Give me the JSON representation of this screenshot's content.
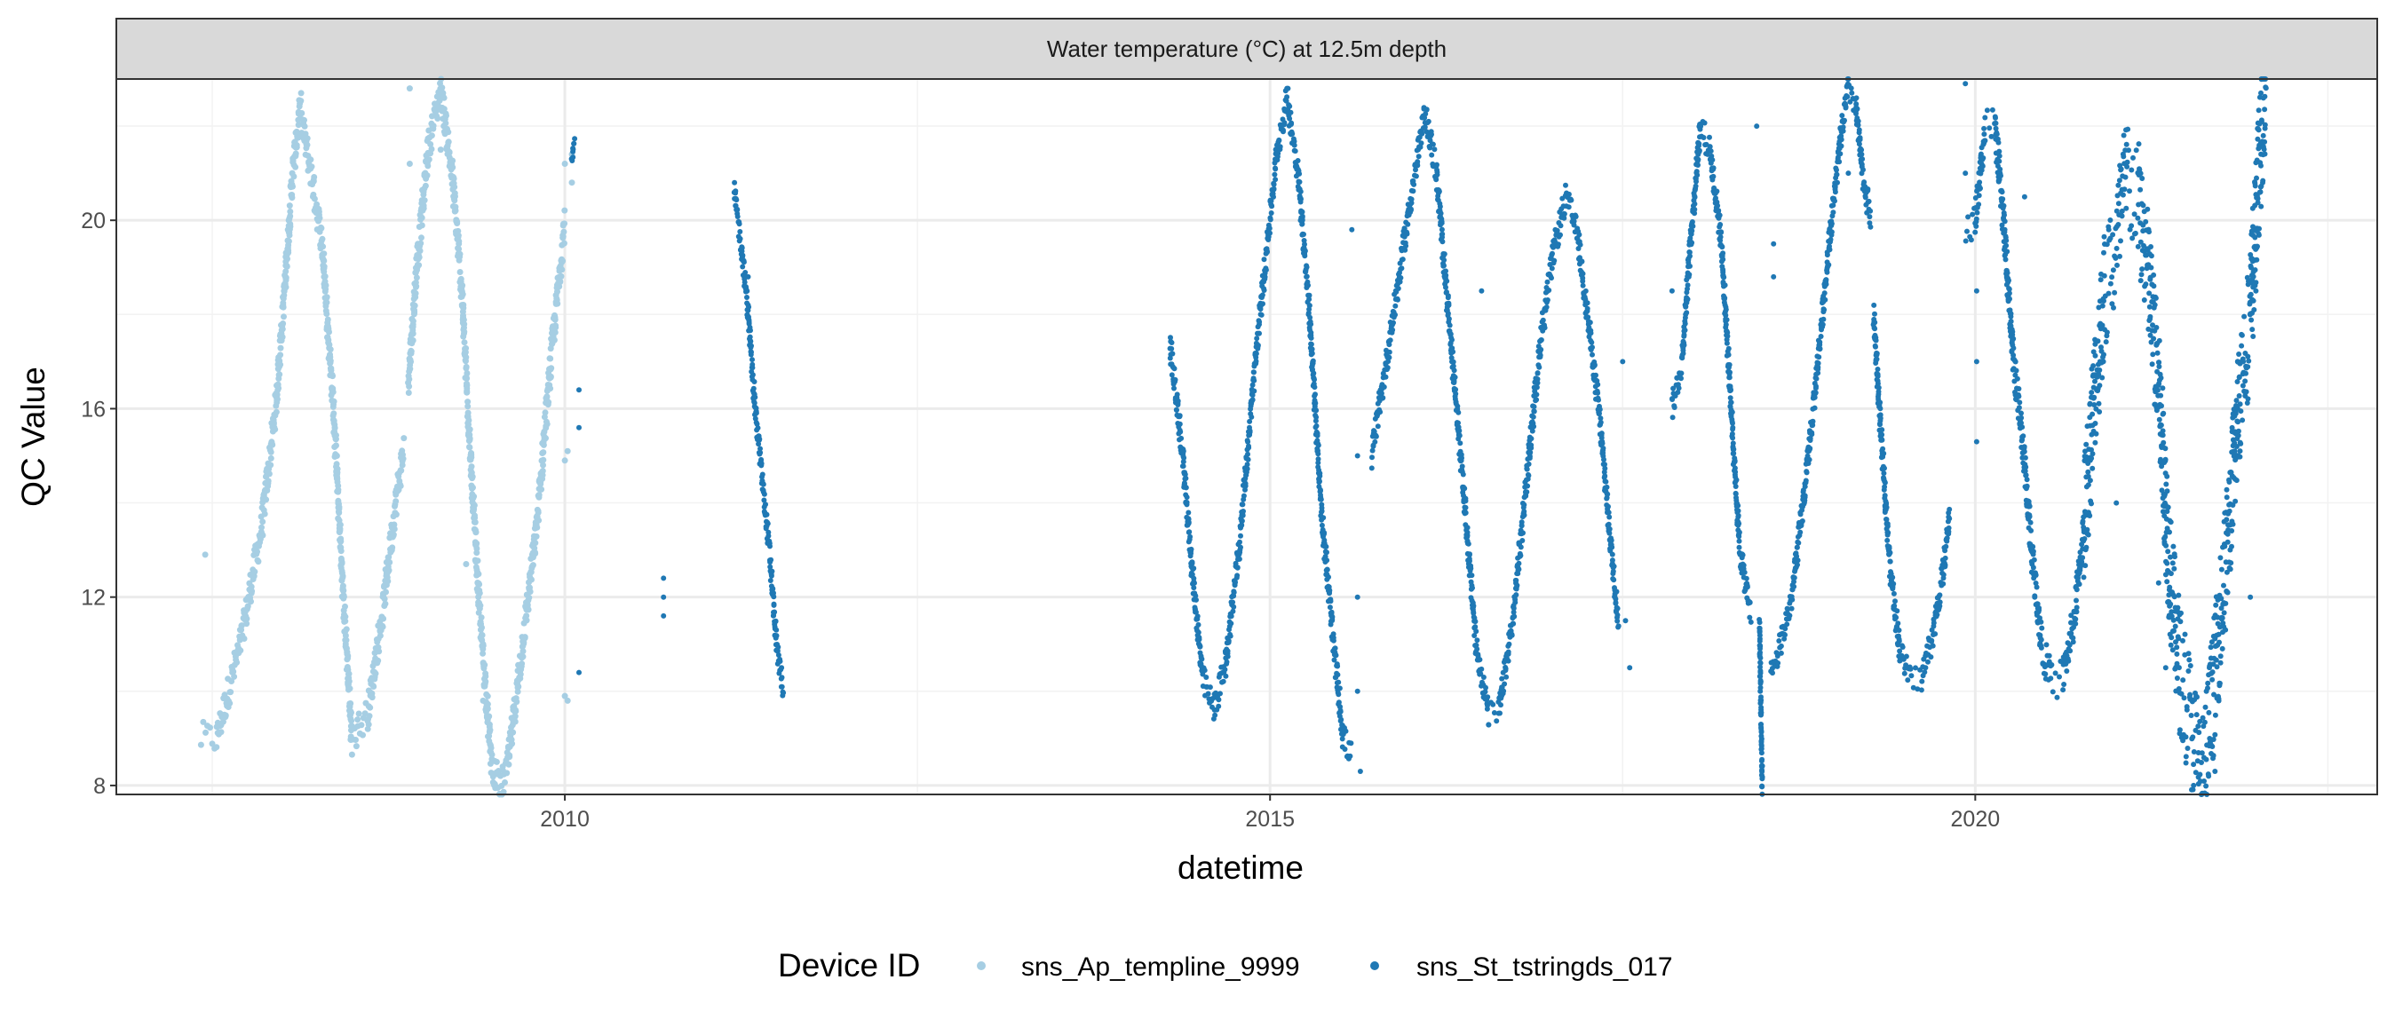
{
  "chart_data": {
    "type": "scatter",
    "facet_title": "Water temperature (°C) at 12.5m depth",
    "xlabel": "datetime",
    "ylabel": "QC Value",
    "xlim": [
      2006.82,
      2022.85
    ],
    "ylim": [
      7.81,
      23.0
    ],
    "x_ticks": [
      2010,
      2015,
      2020
    ],
    "x_tick_labels": [
      "2010",
      "2015",
      "2020"
    ],
    "x_minor": [
      2007.5,
      2012.5,
      2017.5,
      2022.5
    ],
    "y_ticks": [
      8,
      12,
      16,
      20
    ],
    "y_tick_labels": [
      "8",
      "12",
      "16",
      "20"
    ],
    "y_minor": [
      10,
      14,
      18,
      22
    ],
    "grid": true,
    "legend": {
      "title": "Device ID",
      "position": "bottom"
    },
    "series": [
      {
        "name": "sns_Ap_templine_9999",
        "color": "#a6cee3",
        "segments": [
          {
            "noise": 0.35,
            "points": [
              [
                2007.42,
                9.0
              ],
              [
                2007.53,
                9.0
              ],
              [
                2007.7,
                11
              ],
              [
                2007.85,
                13.5
              ],
              [
                2007.95,
                16
              ],
              [
                2008.0,
                18
              ],
              [
                2008.07,
                21
              ],
              [
                2008.12,
                22.3
              ],
              [
                2008.2,
                21
              ],
              [
                2008.28,
                19.5
              ],
              [
                2008.36,
                16
              ],
              [
                2008.42,
                12.5
              ],
              [
                2008.49,
                9.0
              ],
              [
                2008.6,
                9.5
              ],
              [
                2008.7,
                11.5
              ],
              [
                2008.8,
                14
              ],
              [
                2008.86,
                15.2
              ]
            ]
          },
          {
            "noise": 0.35,
            "points": [
              [
                2008.89,
                16.5
              ],
              [
                2008.95,
                19
              ],
              [
                2009.03,
                21.5
              ],
              [
                2009.12,
                22.8
              ],
              [
                2009.2,
                21
              ],
              [
                2009.27,
                18.5
              ],
              [
                2009.33,
                15
              ],
              [
                2009.4,
                11.5
              ],
              [
                2009.48,
                8.5
              ],
              [
                2009.54,
                7.9
              ],
              [
                2009.6,
                8.5
              ],
              [
                2009.7,
                11
              ],
              [
                2009.8,
                13.5
              ],
              [
                2009.9,
                17
              ],
              [
                2010.0,
                20
              ]
            ]
          }
        ],
        "outliers": [
          [
            2007.45,
            12.9
          ],
          [
            2008.13,
            22.7
          ],
          [
            2009.12,
            21.5
          ],
          [
            2008.9,
            22.8
          ],
          [
            2008.9,
            21.2
          ],
          [
            2009.42,
            11
          ],
          [
            2009.42,
            9.8
          ],
          [
            2010.0,
            14.9
          ],
          [
            2010.02,
            15.1
          ],
          [
            2010.0,
            9.9
          ],
          [
            2010.02,
            9.8
          ],
          [
            2010.05,
            20.8
          ],
          [
            2010.05,
            21.4
          ],
          [
            2008.46,
            10.7
          ],
          [
            2008.53,
            9.4
          ],
          [
            2009.3,
            12.7
          ],
          [
            2010.0,
            21.2
          ]
        ]
      },
      {
        "name": "sns_St_tstringds_017",
        "color": "#1f78b4",
        "segments": [
          {
            "noise": 0.1,
            "points": [
              [
                2010.05,
                21.3
              ],
              [
                2010.07,
                21.7
              ]
            ]
          },
          {
            "noise": 0.25,
            "points": [
              [
                2011.2,
                20.6
              ],
              [
                2011.25,
                19.5
              ],
              [
                2011.3,
                18
              ],
              [
                2011.35,
                16
              ],
              [
                2011.4,
                14.5
              ],
              [
                2011.45,
                13
              ],
              [
                2011.5,
                11
              ],
              [
                2011.55,
                10
              ]
            ]
          },
          {
            "noise": 0.3,
            "points": [
              [
                2014.29,
                17.4
              ],
              [
                2014.38,
                15
              ],
              [
                2014.45,
                12.5
              ],
              [
                2014.52,
                10.3
              ],
              [
                2014.6,
                9.6
              ],
              [
                2014.68,
                10.5
              ],
              [
                2014.78,
                13
              ],
              [
                2014.88,
                16.5
              ],
              [
                2014.98,
                19.5
              ],
              [
                2015.05,
                21.5
              ],
              [
                2015.12,
                22.6
              ],
              [
                2015.2,
                21
              ],
              [
                2015.28,
                18
              ],
              [
                2015.36,
                14
              ],
              [
                2015.45,
                11
              ],
              [
                2015.52,
                9.0
              ],
              [
                2015.58,
                8.6
              ]
            ]
          },
          {
            "noise": 0.3,
            "points": [
              [
                2015.72,
                15
              ],
              [
                2015.8,
                16.5
              ],
              [
                2015.9,
                18.5
              ],
              [
                2016.0,
                20.5
              ],
              [
                2016.1,
                22.3
              ],
              [
                2016.18,
                21
              ],
              [
                2016.28,
                17.5
              ],
              [
                2016.38,
                14
              ],
              [
                2016.46,
                11
              ],
              [
                2016.55,
                9.5
              ],
              [
                2016.62,
                9.5
              ],
              [
                2016.72,
                11.5
              ],
              [
                2016.82,
                14.5
              ],
              [
                2016.92,
                17.5
              ],
              [
                2017.02,
                19.5
              ],
              [
                2017.1,
                20.5
              ],
              [
                2017.18,
                19.7
              ],
              [
                2017.25,
                18
              ],
              [
                2017.33,
                16
              ],
              [
                2017.42,
                13
              ],
              [
                2017.47,
                11.5
              ]
            ]
          },
          {
            "noise": 0.3,
            "points": [
              [
                2017.85,
                16
              ],
              [
                2017.92,
                17
              ],
              [
                2017.98,
                19.5
              ],
              [
                2018.05,
                22
              ],
              [
                2018.12,
                21.5
              ],
              [
                2018.2,
                19.5
              ],
              [
                2018.27,
                16
              ],
              [
                2018.33,
                13
              ],
              [
                2018.41,
                11.6
              ]
            ]
          },
          {
            "noise": 0.2,
            "points": [
              [
                2018.47,
                11.5
              ],
              [
                2018.49,
                7.8
              ]
            ]
          },
          {
            "noise": 0.3,
            "points": [
              [
                2018.55,
                10.3
              ],
              [
                2018.62,
                11
              ],
              [
                2018.7,
                12
              ],
              [
                2018.8,
                14.5
              ],
              [
                2018.9,
                17.5
              ],
              [
                2018.98,
                20
              ],
              [
                2019.05,
                21.8
              ],
              [
                2019.1,
                22.8
              ],
              [
                2019.15,
                22.5
              ],
              [
                2019.2,
                21
              ],
              [
                2019.26,
                20
              ]
            ]
          },
          {
            "noise": 0.3,
            "points": [
              [
                2019.28,
                18
              ],
              [
                2019.33,
                15.5
              ],
              [
                2019.4,
                12.5
              ],
              [
                2019.47,
                10.8
              ],
              [
                2019.55,
                10.2
              ],
              [
                2019.62,
                10.3
              ],
              [
                2019.7,
                11.2
              ],
              [
                2019.77,
                12.5
              ],
              [
                2019.82,
                13.8
              ]
            ]
          },
          {
            "noise": 0.4,
            "points": [
              [
                2019.93,
                19.8
              ],
              [
                2020.0,
                20
              ],
              [
                2020.07,
                22
              ],
              [
                2020.14,
                22
              ],
              [
                2020.2,
                20
              ],
              [
                2020.27,
                17
              ],
              [
                2020.33,
                15.5
              ],
              [
                2020.4,
                13
              ],
              [
                2020.47,
                11
              ],
              [
                2020.54,
                10.2
              ],
              [
                2020.62,
                10.3
              ],
              [
                2020.7,
                11.5
              ],
              [
                2020.77,
                13.5
              ]
            ]
          },
          {
            "noise": 1.4,
            "points": [
              [
                2020.77,
                13.5
              ],
              [
                2020.85,
                16.5
              ],
              [
                2020.92,
                18.5
              ],
              [
                2021.0,
                19.5
              ],
              [
                2021.08,
                21
              ],
              [
                2021.15,
                20.5
              ],
              [
                2021.22,
                19
              ],
              [
                2021.3,
                16.5
              ],
              [
                2021.38,
                12.5
              ],
              [
                2021.45,
                10.5
              ],
              [
                2021.52,
                9.5
              ],
              [
                2021.6,
                8.2
              ],
              [
                2021.65,
                9
              ],
              [
                2021.72,
                11
              ],
              [
                2021.8,
                13.5
              ],
              [
                2021.88,
                16.5
              ],
              [
                2021.95,
                18
              ],
              [
                2022.0,
                20.5
              ],
              [
                2022.06,
                23
              ]
            ]
          }
        ],
        "outliers": [
          [
            2010.1,
            16.4
          ],
          [
            2010.1,
            15.6
          ],
          [
            2010.1,
            10.4
          ],
          [
            2010.7,
            12.4
          ],
          [
            2010.7,
            12.0
          ],
          [
            2010.7,
            11.6
          ],
          [
            2011.3,
            18.8
          ],
          [
            2011.3,
            18.2
          ],
          [
            2015.62,
            15
          ],
          [
            2015.62,
            12
          ],
          [
            2015.62,
            10
          ],
          [
            2015.64,
            8.3
          ],
          [
            2015.58,
            19.8
          ],
          [
            2016.05,
            21.5
          ],
          [
            2016.5,
            18.5
          ],
          [
            2017.5,
            17
          ],
          [
            2017.52,
            11.5
          ],
          [
            2017.55,
            10.5
          ],
          [
            2017.85,
            18.5
          ],
          [
            2018.45,
            22
          ],
          [
            2018.57,
            19.5
          ],
          [
            2018.57,
            18.8
          ],
          [
            2019.1,
            21
          ],
          [
            2019.93,
            22.9
          ],
          [
            2019.93,
            21
          ],
          [
            2020.01,
            18.5
          ],
          [
            2020.01,
            17
          ],
          [
            2020.01,
            15.3
          ],
          [
            2021.0,
            14
          ],
          [
            2021.3,
            12.3
          ],
          [
            2021.35,
            10.5
          ],
          [
            2021.9,
            17
          ],
          [
            2021.95,
            12
          ],
          [
            2021.7,
            8.3
          ],
          [
            2020.35,
            20.5
          ]
        ]
      }
    ]
  }
}
